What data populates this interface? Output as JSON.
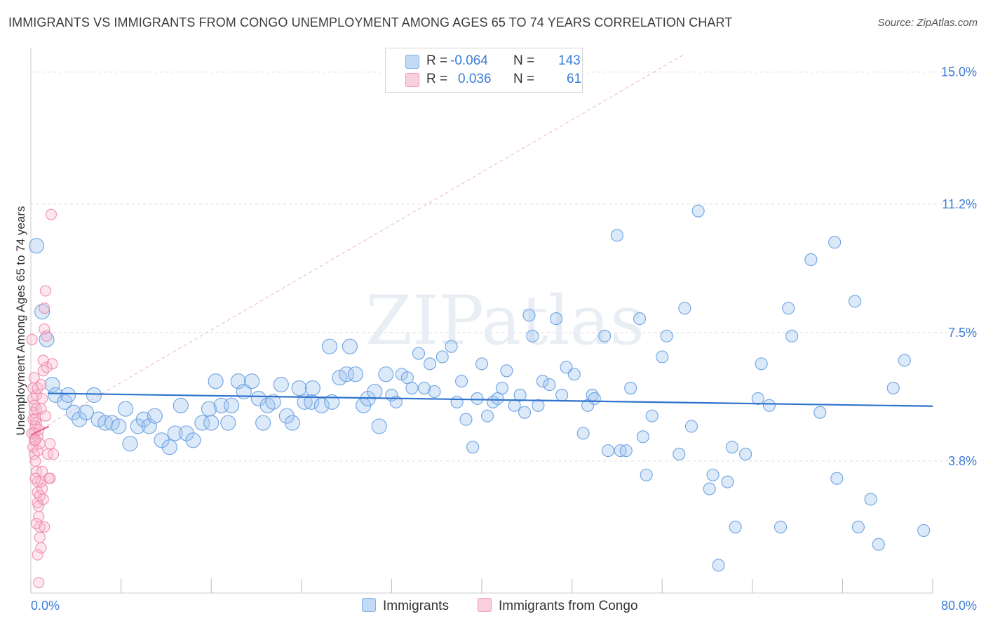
{
  "title": "IMMIGRANTS VS IMMIGRANTS FROM CONGO UNEMPLOYMENT AMONG AGES 65 TO 74 YEARS CORRELATION CHART",
  "source": "Source: ZipAtlas.com",
  "watermark": "ZIPatlas",
  "legend": {
    "rows": [
      {
        "r_label": "R =",
        "r_value": "-0.064",
        "n_label": "N =",
        "n_value": "143"
      },
      {
        "r_label": "R =",
        "r_value": "0.036",
        "n_label": "N =",
        "n_value": "61"
      }
    ]
  },
  "chart_data": {
    "type": "scatter",
    "title": "IMMIGRANTS VS IMMIGRANTS FROM CONGO UNEMPLOYMENT AMONG AGES 65 TO 74 YEARS CORRELATION CHART",
    "xlabel": "",
    "ylabel": "Unemployment Among Ages 65 to 74 years",
    "xlim": [
      0,
      80
    ],
    "ylim": [
      0,
      15.5
    ],
    "x_tick_labels": [
      "0.0%",
      "80.0%"
    ],
    "y_ticks": [
      3.8,
      7.5,
      11.2,
      15.0
    ],
    "y_tick_labels": [
      "3.8%",
      "7.5%",
      "11.2%",
      "15.0%"
    ],
    "colors": {
      "immigrants": "#7fb0e8",
      "immigrants_line": "#2f73cc",
      "congo": "#f29ab6",
      "congo_line": "#e8648c",
      "tick_text": "#3b7dd8"
    },
    "series": [
      {
        "name": "Immigrants",
        "r": -0.064,
        "n": 143,
        "trend": {
          "x": [
            1.5,
            80
          ],
          "y": [
            5.75,
            5.38
          ]
        },
        "points": [
          [
            0.5,
            10.0
          ],
          [
            1.0,
            8.1
          ],
          [
            1.4,
            7.3
          ],
          [
            1.9,
            6.0
          ],
          [
            2.2,
            5.7
          ],
          [
            3.0,
            5.5
          ],
          [
            3.3,
            5.7
          ],
          [
            3.8,
            5.2
          ],
          [
            4.3,
            5.0
          ],
          [
            4.9,
            5.2
          ],
          [
            5.6,
            5.7
          ],
          [
            6.0,
            5.0
          ],
          [
            6.6,
            4.9
          ],
          [
            7.2,
            4.9
          ],
          [
            7.8,
            4.8
          ],
          [
            8.4,
            5.3
          ],
          [
            8.8,
            4.3
          ],
          [
            9.5,
            4.8
          ],
          [
            10.0,
            5.0
          ],
          [
            10.5,
            4.8
          ],
          [
            11.0,
            5.1
          ],
          [
            11.6,
            4.4
          ],
          [
            12.3,
            4.2
          ],
          [
            12.8,
            4.6
          ],
          [
            13.3,
            5.4
          ],
          [
            13.8,
            4.6
          ],
          [
            14.4,
            4.4
          ],
          [
            15.2,
            4.9
          ],
          [
            15.8,
            5.3
          ],
          [
            16.0,
            4.9
          ],
          [
            16.4,
            6.1
          ],
          [
            16.9,
            5.4
          ],
          [
            17.5,
            4.9
          ],
          [
            17.8,
            5.4
          ],
          [
            18.4,
            6.1
          ],
          [
            18.9,
            5.8
          ],
          [
            19.6,
            6.1
          ],
          [
            20.2,
            5.6
          ],
          [
            20.6,
            4.9
          ],
          [
            21.0,
            5.4
          ],
          [
            21.5,
            5.5
          ],
          [
            22.2,
            6.0
          ],
          [
            22.7,
            5.1
          ],
          [
            23.2,
            4.9
          ],
          [
            23.8,
            5.9
          ],
          [
            24.3,
            5.5
          ],
          [
            24.9,
            5.5
          ],
          [
            25.0,
            5.9
          ],
          [
            25.8,
            5.4
          ],
          [
            26.7,
            5.5
          ],
          [
            26.5,
            7.1
          ],
          [
            27.4,
            6.2
          ],
          [
            28.0,
            6.3
          ],
          [
            28.3,
            7.1
          ],
          [
            28.8,
            6.3
          ],
          [
            29.5,
            5.4
          ],
          [
            29.9,
            5.6
          ],
          [
            30.5,
            5.8
          ],
          [
            30.9,
            4.8
          ],
          [
            31.5,
            6.3
          ],
          [
            32.0,
            5.7
          ],
          [
            32.4,
            5.5
          ],
          [
            32.9,
            6.3
          ],
          [
            33.4,
            6.2
          ],
          [
            33.8,
            5.9
          ],
          [
            34.4,
            6.9
          ],
          [
            34.9,
            5.9
          ],
          [
            35.4,
            6.6
          ],
          [
            35.8,
            5.8
          ],
          [
            36.5,
            6.8
          ],
          [
            37.3,
            7.1
          ],
          [
            37.8,
            5.5
          ],
          [
            38.2,
            6.1
          ],
          [
            38.6,
            5.0
          ],
          [
            39.2,
            4.2
          ],
          [
            39.6,
            5.6
          ],
          [
            40.0,
            6.6
          ],
          [
            40.5,
            5.1
          ],
          [
            41.0,
            5.5
          ],
          [
            41.4,
            5.6
          ],
          [
            41.8,
            5.9
          ],
          [
            42.2,
            6.4
          ],
          [
            42.9,
            5.4
          ],
          [
            43.4,
            5.7
          ],
          [
            43.8,
            5.2
          ],
          [
            44.2,
            8.0
          ],
          [
            44.5,
            7.4
          ],
          [
            45.0,
            5.4
          ],
          [
            45.4,
            6.1
          ],
          [
            46.0,
            6.0
          ],
          [
            46.6,
            7.9
          ],
          [
            47.1,
            5.7
          ],
          [
            47.5,
            6.5
          ],
          [
            48.2,
            6.3
          ],
          [
            49.0,
            4.6
          ],
          [
            49.4,
            5.4
          ],
          [
            49.8,
            5.7
          ],
          [
            50.0,
            5.6
          ],
          [
            50.9,
            7.4
          ],
          [
            51.2,
            4.1
          ],
          [
            52.0,
            10.3
          ],
          [
            52.3,
            4.1
          ],
          [
            52.8,
            4.1
          ],
          [
            53.2,
            5.9
          ],
          [
            54.0,
            7.9
          ],
          [
            54.3,
            4.5
          ],
          [
            54.6,
            3.4
          ],
          [
            55.1,
            5.1
          ],
          [
            56.0,
            6.8
          ],
          [
            56.4,
            7.4
          ],
          [
            57.5,
            4.0
          ],
          [
            58.0,
            8.2
          ],
          [
            58.6,
            4.8
          ],
          [
            59.2,
            11.0
          ],
          [
            60.2,
            3.0
          ],
          [
            60.5,
            3.4
          ],
          [
            61.0,
            0.8
          ],
          [
            61.8,
            3.2
          ],
          [
            62.2,
            4.2
          ],
          [
            62.5,
            1.9
          ],
          [
            63.4,
            4.0
          ],
          [
            64.5,
            5.6
          ],
          [
            64.8,
            6.6
          ],
          [
            65.5,
            5.4
          ],
          [
            66.5,
            1.9
          ],
          [
            67.2,
            8.2
          ],
          [
            67.5,
            7.4
          ],
          [
            69.2,
            9.6
          ],
          [
            70.0,
            5.2
          ],
          [
            71.3,
            10.1
          ],
          [
            71.5,
            3.3
          ],
          [
            73.1,
            8.4
          ],
          [
            73.4,
            1.9
          ],
          [
            74.5,
            2.7
          ],
          [
            75.2,
            1.4
          ],
          [
            76.5,
            5.9
          ],
          [
            77.5,
            6.7
          ],
          [
            79.2,
            1.8
          ]
        ]
      },
      {
        "name": "Immigrants from Congo",
        "r": 0.036,
        "n": 61,
        "trend": {
          "x": [
            0,
            1.6
          ],
          "y": [
            4.55,
            4.8
          ]
        },
        "trend_extended": {
          "x": [
            0,
            57.9
          ],
          "y": [
            4.55,
            15.5
          ]
        },
        "points": [
          [
            0.1,
            7.3
          ],
          [
            0.2,
            5.9
          ],
          [
            0.2,
            5.6
          ],
          [
            0.3,
            5.4
          ],
          [
            0.3,
            5.2
          ],
          [
            0.4,
            5.0
          ],
          [
            0.4,
            4.8
          ],
          [
            0.3,
            4.6
          ],
          [
            0.3,
            4.4
          ],
          [
            0.2,
            4.2
          ],
          [
            0.3,
            4.0
          ],
          [
            0.4,
            3.8
          ],
          [
            0.5,
            5.7
          ],
          [
            0.5,
            5.3
          ],
          [
            0.5,
            4.9
          ],
          [
            0.6,
            4.5
          ],
          [
            0.6,
            4.1
          ],
          [
            0.5,
            3.5
          ],
          [
            0.6,
            3.2
          ],
          [
            0.6,
            2.9
          ],
          [
            0.6,
            2.6
          ],
          [
            0.7,
            2.5
          ],
          [
            0.7,
            2.2
          ],
          [
            0.8,
            1.9
          ],
          [
            0.8,
            1.6
          ],
          [
            0.9,
            1.3
          ],
          [
            0.7,
            0.3
          ],
          [
            0.8,
            2.8
          ],
          [
            0.9,
            3.2
          ],
          [
            1.0,
            3.0
          ],
          [
            1.0,
            3.5
          ],
          [
            1.1,
            6.4
          ],
          [
            1.1,
            6.7
          ],
          [
            1.2,
            7.6
          ],
          [
            1.2,
            8.2
          ],
          [
            1.3,
            8.7
          ],
          [
            1.4,
            6.5
          ],
          [
            1.4,
            7.4
          ],
          [
            1.5,
            4.0
          ],
          [
            1.6,
            3.3
          ],
          [
            1.7,
            3.3
          ],
          [
            1.7,
            4.3
          ],
          [
            1.8,
            10.9
          ],
          [
            1.9,
            6.6
          ],
          [
            2.0,
            4.0
          ],
          [
            0.9,
            5.3
          ],
          [
            1.0,
            5.6
          ],
          [
            0.7,
            4.7
          ],
          [
            0.8,
            4.3
          ],
          [
            0.4,
            3.3
          ],
          [
            0.5,
            2.0
          ],
          [
            0.6,
            1.1
          ],
          [
            1.1,
            2.7
          ],
          [
            1.2,
            1.9
          ],
          [
            0.3,
            6.2
          ],
          [
            0.2,
            5.0
          ],
          [
            0.1,
            4.6
          ],
          [
            0.4,
            4.4
          ],
          [
            0.6,
            5.9
          ],
          [
            1.3,
            5.1
          ],
          [
            0.9,
            6.0
          ]
        ]
      }
    ]
  },
  "bottom_legend": {
    "immigrants": "Immigrants",
    "congo": "Immigrants from Congo"
  }
}
